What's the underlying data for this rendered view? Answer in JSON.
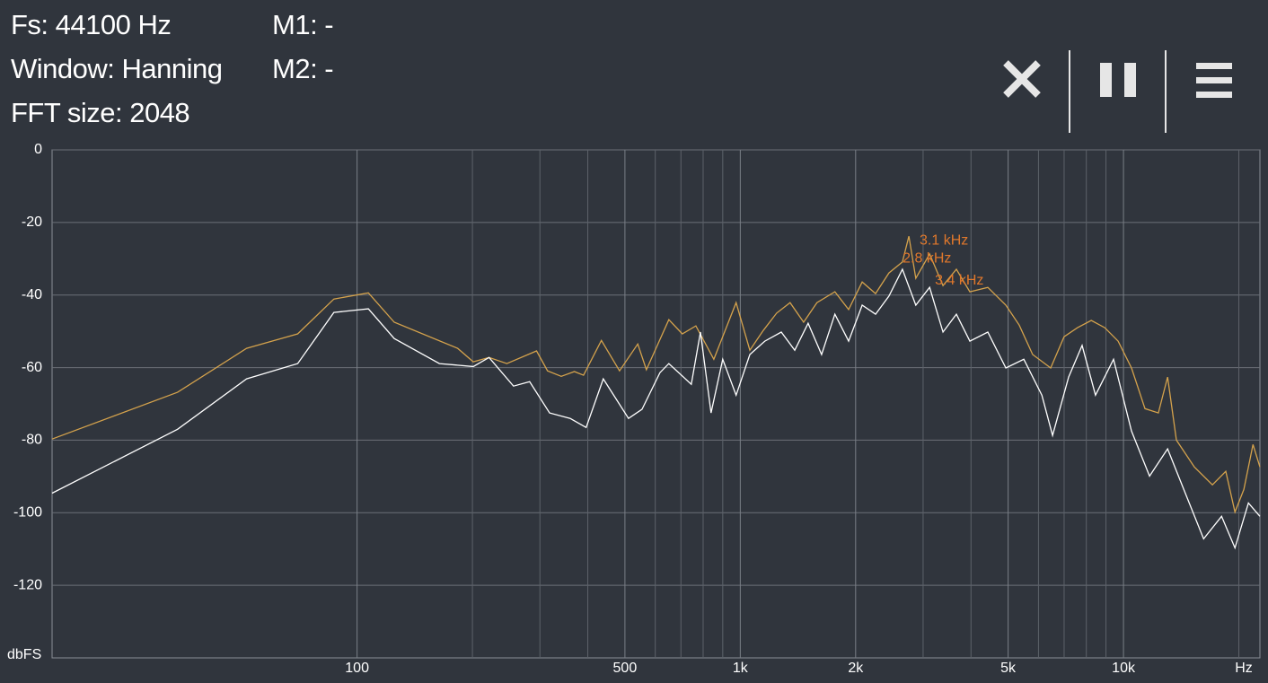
{
  "header": {
    "lines": [
      "Fs: 44100 Hz",
      "Window: Hanning",
      "FFT size: 2048"
    ],
    "markers": [
      "M1: -",
      "M2: -"
    ]
  },
  "chart_data": {
    "type": "line",
    "y_unit": "dbFS",
    "x_unit": "Hz",
    "xscale": "log",
    "xlim": [
      16,
      22700
    ],
    "xticks": [
      100,
      500,
      {
        "value": 1000,
        "label": "1k"
      },
      {
        "value": 2000,
        "label": "2k"
      },
      {
        "value": 5000,
        "label": "5k"
      },
      {
        "value": 10000,
        "label": "10k"
      }
    ],
    "xgrid_minor": [
      200,
      300,
      400,
      600,
      700,
      800,
      900,
      3000,
      4000,
      6000,
      7000,
      8000,
      9000,
      20000
    ],
    "ylim": [
      -140,
      0
    ],
    "yticks": [
      0,
      -20,
      -40,
      -60,
      -80,
      -100,
      -120
    ],
    "grid": true,
    "series": [
      {
        "color": "#d4a24c",
        "x": [
          16,
          34,
          51.5,
          70,
          87,
          107,
          125,
          183,
          201,
          221,
          246,
          294,
          314,
          341,
          369,
          390,
          434,
          484,
          540,
          569,
          651,
          706,
          766,
          853,
          975,
          1059,
          1148,
          1244,
          1349,
          1463,
          1585,
          1766,
          1918,
          2080,
          2254,
          2443,
          2649,
          2754,
          2871,
          3119,
          3381,
          3664,
          3972,
          4426,
          4932,
          5346,
          5794,
          6457,
          6998,
          7586,
          8241,
          8933,
          9683,
          10496,
          11376,
          12331,
          13032,
          13740,
          15311,
          17061,
          18493,
          19543,
          20606,
          21777,
          22700
        ],
        "values": [
          -79.7,
          -66.8,
          -54.7,
          -50.7,
          -41.1,
          -39.4,
          -47.5,
          -54.7,
          -58.4,
          -57.2,
          -58.9,
          -55.4,
          -60.9,
          -62.4,
          -61.1,
          -62.1,
          -52.5,
          -60.9,
          -53.5,
          -60.6,
          -46.8,
          -50.7,
          -48.5,
          -57.7,
          -42.1,
          -55.2,
          -49.8,
          -45,
          -42.1,
          -47.5,
          -42.1,
          -39.1,
          -44,
          -36.4,
          -39.6,
          -33.9,
          -30.9,
          -23.8,
          -35.4,
          -28.7,
          -37.4,
          -32.9,
          -39.1,
          -37.9,
          -42.8,
          -48.3,
          -56.4,
          -60.1,
          -51.5,
          -49,
          -47,
          -49,
          -52.7,
          -60.1,
          -71.3,
          -72.5,
          -62.6,
          -80,
          -87.4,
          -92.3,
          -88.6,
          -99.8,
          -93.6,
          -81.2,
          -87.4
        ]
      },
      {
        "color": "#ffffff",
        "x": [
          16,
          34,
          51.5,
          70,
          87,
          107,
          125,
          164,
          201,
          221,
          256,
          282,
          318,
          360,
          396,
          439,
          511,
          554,
          617,
          651,
          745,
          787,
          839,
          900,
          975,
          1059,
          1159,
          1279,
          1387,
          1503,
          1630,
          1766,
          1918,
          2080,
          2254,
          2443,
          2649,
          2871,
          3119,
          3381,
          3664,
          3972,
          4426,
          4932,
          5495,
          6124,
          6531,
          7194,
          7798,
          8453,
          9419,
          10496,
          11695,
          13032,
          14521,
          16181,
          18030,
          19543,
          21184,
          22700
        ],
        "values": [
          -94.6,
          -77,
          -63.1,
          -58.9,
          -44.8,
          -43.8,
          -52,
          -58.9,
          -59.7,
          -57.2,
          -65.1,
          -63.9,
          -72.5,
          -74,
          -76.5,
          -63.1,
          -74,
          -71.5,
          -61.4,
          -58.9,
          -64.6,
          -50.2,
          -72.5,
          -57.7,
          -67.6,
          -56.4,
          -52.7,
          -50.2,
          -55.2,
          -47.8,
          -56.4,
          -45.3,
          -52.7,
          -42.8,
          -45.3,
          -40.3,
          -32.9,
          -42.8,
          -37.9,
          -50.2,
          -45.3,
          -52.7,
          -50.2,
          -60.1,
          -57.7,
          -67.6,
          -78.7,
          -62.6,
          -53.9,
          -67.6,
          -57.7,
          -77.5,
          -89.9,
          -82.4,
          -94.8,
          -107.2,
          -101,
          -109.7,
          -97.3,
          -101
        ]
      }
    ],
    "annotations": [
      {
        "text": "3.1  kHz",
        "x": 3100,
        "y": -25,
        "color": "#e0782c"
      },
      {
        "text": "2.8  kHz",
        "x": 2800,
        "y": -30,
        "color": "#e0782c"
      },
      {
        "text": "3.4  kHz",
        "x": 3400,
        "y": -36,
        "color": "#e0782c"
      }
    ]
  }
}
